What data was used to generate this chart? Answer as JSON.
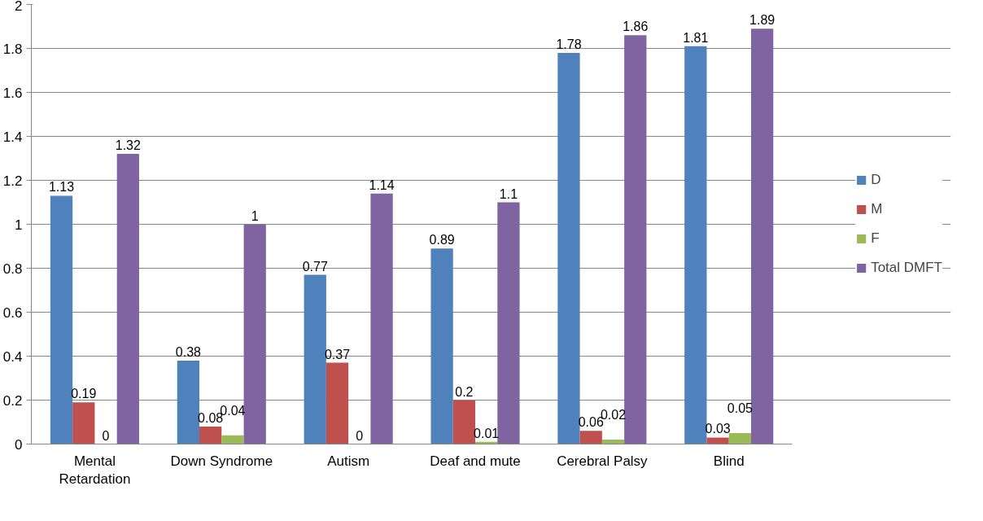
{
  "chart_data": {
    "type": "bar",
    "categories": [
      "Mental Retardation",
      "Down Syndrome",
      "Autism",
      "Deaf and mute",
      "Cerebral Palsy",
      "Blind"
    ],
    "series": [
      {
        "name": "D",
        "color": "#4f81bd",
        "values": [
          1.13,
          0.38,
          0.77,
          0.89,
          1.78,
          1.81
        ]
      },
      {
        "name": "M",
        "color": "#c0504d",
        "values": [
          0.19,
          0.08,
          0.37,
          0.2,
          0.06,
          0.03
        ]
      },
      {
        "name": "F",
        "color": "#9bbb59",
        "values": [
          0,
          0.04,
          0,
          0.01,
          0.02,
          0.05
        ]
      },
      {
        "name": "Total DMFT",
        "color": "#8064a2",
        "values": [
          1.32,
          1,
          1.14,
          1.1,
          1.86,
          1.89
        ]
      }
    ],
    "ylim": [
      0,
      2
    ],
    "yticks": [
      0,
      0.2,
      0.4,
      0.6,
      0.8,
      1,
      1.2,
      1.4,
      1.6,
      1.8,
      2
    ],
    "grid": "y",
    "legend": "right",
    "data_labels": true
  }
}
